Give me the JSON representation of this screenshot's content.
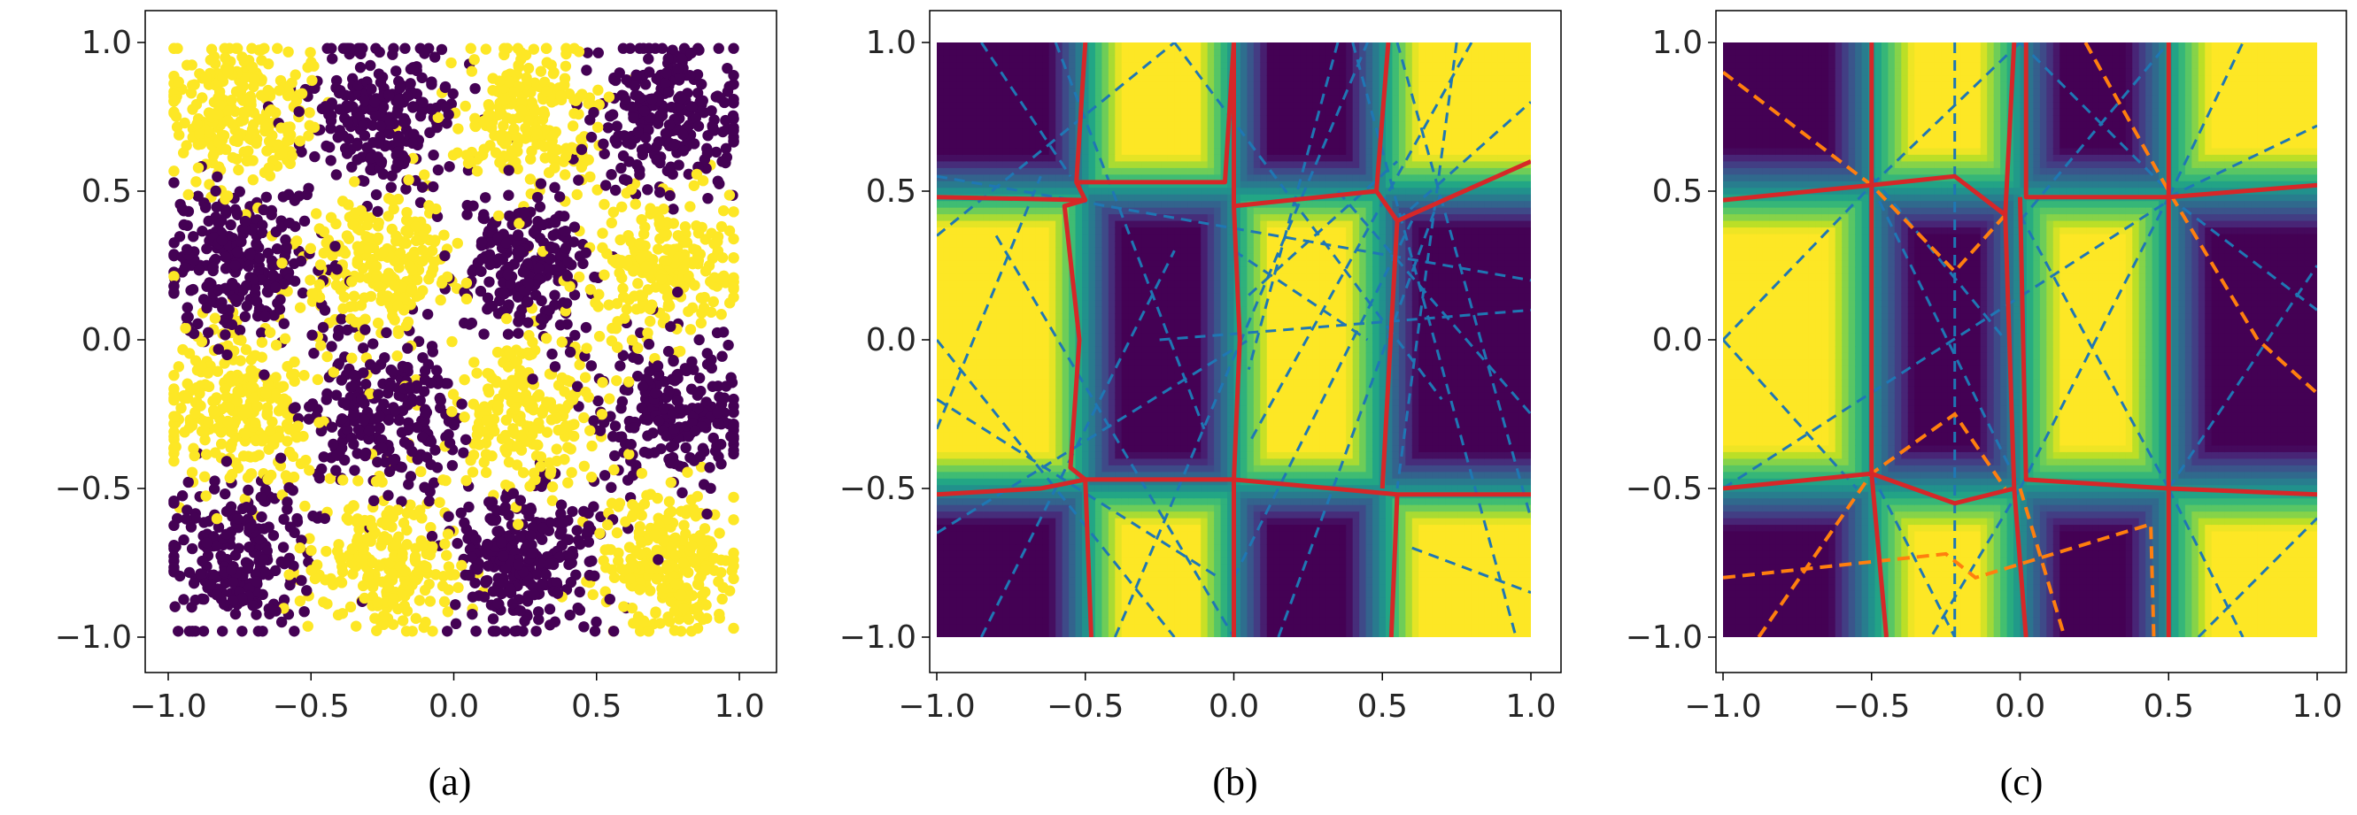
{
  "figure": {
    "captions": [
      "(a)",
      "(b)",
      "(c)"
    ]
  },
  "axes": {
    "xticks": [
      -1.0,
      -0.5,
      0.0,
      0.5,
      1.0
    ],
    "yticks": [
      1.0,
      0.5,
      0.0,
      -0.5,
      -1.0
    ],
    "xtick_labels": [
      "−1.0",
      "−0.5",
      "0.0",
      "0.5",
      "1.0"
    ],
    "ytick_labels": [
      "1.0",
      "0.5",
      "0.0",
      "−0.5",
      "−1.0"
    ]
  },
  "colors": {
    "class_0": "#440154",
    "class_1": "#fde725",
    "boundary": "#d62728",
    "blue_dashed": "#1f77b4",
    "orange_dashed": "#ff7f0e"
  },
  "chart_data": [
    {
      "panel": "(a)",
      "type": "scatter",
      "xlim": [
        -1.0,
        1.0
      ],
      "ylim": [
        -1.0,
        1.0
      ],
      "description_of_data": "4x4 checkerboard of two classes on [-1,1]^2",
      "checkerboard_cells": [
        -1.0,
        -0.5,
        0.0,
        0.5,
        1.0
      ],
      "classes": [
        "purple",
        "yellow"
      ],
      "n_points_approx": 4000
    },
    {
      "panel": "(b)",
      "type": "heatmap",
      "xlim": [
        -1.0,
        1.0
      ],
      "ylim": [
        -1.0,
        1.0
      ],
      "x_boundaries_ideal": [
        -0.5,
        0.0,
        0.5
      ],
      "y_boundaries_ideal": [
        -0.5,
        0.5
      ],
      "red_boundaries": [
        [
          [
            -0.5,
            1.0
          ],
          [
            -0.53,
            0.53
          ],
          [
            -0.5,
            0.47
          ],
          [
            -1.0,
            0.48
          ]
        ],
        [
          [
            -0.5,
            0.47
          ],
          [
            -0.57,
            0.45
          ],
          [
            -0.52,
            0.0
          ],
          [
            -0.55,
            -0.43
          ],
          [
            -0.5,
            -0.47
          ],
          [
            -0.65,
            -0.5
          ],
          [
            -1.0,
            -0.52
          ]
        ],
        [
          [
            -0.53,
            0.53
          ],
          [
            -0.03,
            0.53
          ],
          [
            0.0,
            1.0
          ]
        ],
        [
          [
            -0.5,
            -0.47
          ],
          [
            -0.48,
            -1.0
          ]
        ],
        [
          [
            -0.5,
            -0.47
          ],
          [
            0.0,
            -0.47
          ],
          [
            0.0,
            -1.0
          ]
        ],
        [
          [
            0.0,
            1.0
          ],
          [
            0.0,
            0.45
          ],
          [
            0.02,
            0.0
          ],
          [
            0.0,
            -0.47
          ]
        ],
        [
          [
            0.0,
            0.45
          ],
          [
            0.48,
            0.5
          ],
          [
            0.52,
            1.0
          ]
        ],
        [
          [
            0.48,
            0.5
          ],
          [
            0.55,
            0.4
          ],
          [
            0.5,
            -0.5
          ]
        ],
        [
          [
            0.0,
            -0.47
          ],
          [
            0.55,
            -0.52
          ],
          [
            1.0,
            -0.52
          ]
        ],
        [
          [
            0.55,
            -0.52
          ],
          [
            0.53,
            -1.0
          ]
        ],
        [
          [
            0.55,
            0.4
          ],
          [
            1.0,
            0.6
          ]
        ]
      ],
      "blue_dashed_lines": [
        [
          [
            -1.0,
            0.55
          ],
          [
            1.0,
            0.2
          ]
        ],
        [
          [
            -1.0,
            0.35
          ],
          [
            -0.2,
            1.0
          ]
        ],
        [
          [
            -1.0,
            -0.3
          ],
          [
            -0.65,
            0.55
          ]
        ],
        [
          [
            -1.0,
            0.0
          ],
          [
            -0.2,
            -1.0
          ]
        ],
        [
          [
            -1.0,
            -0.2
          ],
          [
            -0.05,
            -0.8
          ]
        ],
        [
          [
            -1.0,
            -0.65
          ],
          [
            0.05,
            0.0
          ]
        ],
        [
          [
            -0.85,
            -1.0
          ],
          [
            -0.2,
            0.3
          ]
        ],
        [
          [
            -0.85,
            1.0
          ],
          [
            -0.55,
            0.55
          ]
        ],
        [
          [
            -0.8,
            0.35
          ],
          [
            0.0,
            -1.0
          ]
        ],
        [
          [
            -0.6,
            1.0
          ],
          [
            -0.1,
            -0.3
          ]
        ],
        [
          [
            -0.4,
            -1.0
          ],
          [
            0.45,
            1.0
          ]
        ],
        [
          [
            -0.25,
            0.0
          ],
          [
            1.0,
            0.1
          ]
        ],
        [
          [
            -0.2,
            1.0
          ],
          [
            0.7,
            -0.2
          ]
        ],
        [
          [
            0.0,
            0.3
          ],
          [
            0.45,
            0.0
          ]
        ],
        [
          [
            0.0,
            -0.8
          ],
          [
            0.6,
            0.4
          ]
        ],
        [
          [
            0.05,
            0.15
          ],
          [
            0.55,
            0.6
          ]
        ],
        [
          [
            0.15,
            -1.0
          ],
          [
            0.7,
            0.5
          ]
        ],
        [
          [
            0.35,
            1.0
          ],
          [
            0.05,
            -0.1
          ]
        ],
        [
          [
            0.35,
            0.5
          ],
          [
            1.0,
            -0.25
          ]
        ],
        [
          [
            0.4,
            1.0
          ],
          [
            0.95,
            -1.0
          ]
        ],
        [
          [
            0.55,
            1.0
          ],
          [
            1.0,
            -0.6
          ]
        ],
        [
          [
            0.55,
            0.4
          ],
          [
            1.0,
            0.8
          ]
        ],
        [
          [
            0.6,
            -0.7
          ],
          [
            1.0,
            -0.85
          ]
        ],
        [
          [
            0.75,
            1.0
          ],
          [
            0.55,
            -0.5
          ]
        ],
        [
          [
            0.8,
            1.0
          ],
          [
            0.05,
            -0.35
          ]
        ]
      ]
    },
    {
      "panel": "(c)",
      "type": "heatmap",
      "xlim": [
        -1.0,
        1.0
      ],
      "ylim": [
        -1.0,
        1.0
      ],
      "x_boundaries_ideal": [
        -0.5,
        0.0,
        0.5
      ],
      "y_boundaries_ideal": [
        -0.5,
        0.5
      ],
      "red_boundaries": [
        [
          [
            -0.5,
            1.0
          ],
          [
            -0.5,
            0.52
          ],
          [
            -1.0,
            0.47
          ]
        ],
        [
          [
            -0.5,
            0.52
          ],
          [
            -0.22,
            0.55
          ],
          [
            -0.05,
            0.42
          ],
          [
            -0.02,
            1.0
          ]
        ],
        [
          [
            -0.5,
            0.52
          ],
          [
            -0.5,
            -0.45
          ]
        ],
        [
          [
            -0.05,
            0.42
          ],
          [
            -0.02,
            -0.5
          ]
        ],
        [
          [
            0.02,
            1.0
          ],
          [
            0.02,
            0.48
          ],
          [
            0.5,
            0.48
          ],
          [
            0.5,
            1.0
          ]
        ],
        [
          [
            0.5,
            0.48
          ],
          [
            1.0,
            0.52
          ]
        ],
        [
          [
            0.0,
            0.48
          ],
          [
            0.02,
            -0.47
          ],
          [
            0.5,
            -0.5
          ],
          [
            1.0,
            -0.52
          ]
        ],
        [
          [
            0.5,
            0.48
          ],
          [
            0.5,
            -0.5
          ]
        ],
        [
          [
            -1.0,
            -0.5
          ],
          [
            -0.5,
            -0.45
          ],
          [
            -0.22,
            -0.55
          ],
          [
            -0.02,
            -0.5
          ]
        ],
        [
          [
            -0.5,
            -0.45
          ],
          [
            -0.45,
            -1.0
          ]
        ],
        [
          [
            -0.02,
            -0.5
          ],
          [
            0.02,
            -1.0
          ]
        ],
        [
          [
            0.5,
            -0.5
          ],
          [
            0.5,
            -1.0
          ]
        ]
      ],
      "blue_dashed_lines": [
        [
          [
            -0.22,
            1.0
          ],
          [
            -0.22,
            -1.0
          ]
        ],
        [
          [
            -1.0,
            0.0
          ],
          [
            -0.55,
            -0.5
          ]
        ],
        [
          [
            -1.0,
            -0.0
          ],
          [
            -0.5,
            0.52
          ]
        ],
        [
          [
            -1.0,
            -0.5
          ],
          [
            0.55,
            0.5
          ]
        ],
        [
          [
            -0.5,
            0.52
          ],
          [
            0.0,
            1.0
          ]
        ],
        [
          [
            -0.5,
            0.52
          ],
          [
            0.0,
            -0.5
          ]
        ],
        [
          [
            -0.5,
            0.55
          ],
          [
            -0.05,
            0.0
          ]
        ],
        [
          [
            0.0,
            1.0
          ],
          [
            0.5,
            0.5
          ]
        ],
        [
          [
            0.0,
            0.4
          ],
          [
            0.5,
            1.0
          ]
        ],
        [
          [
            0.0,
            0.42
          ],
          [
            0.5,
            -0.5
          ]
        ],
        [
          [
            0.0,
            -0.5
          ],
          [
            0.5,
            0.48
          ]
        ],
        [
          [
            0.5,
            0.48
          ],
          [
            0.75,
            1.0
          ]
        ],
        [
          [
            0.5,
            0.48
          ],
          [
            1.0,
            0.1
          ]
        ],
        [
          [
            0.5,
            -0.5
          ],
          [
            1.0,
            0.25
          ]
        ],
        [
          [
            0.5,
            -0.5
          ],
          [
            0.75,
            -1.0
          ]
        ],
        [
          [
            0.6,
            -1.0
          ],
          [
            1.0,
            -0.6
          ]
        ],
        [
          [
            -0.5,
            -0.45
          ],
          [
            -0.22,
            -1.0
          ]
        ],
        [
          [
            0.0,
            -0.5
          ],
          [
            -0.3,
            -1.0
          ]
        ],
        [
          [
            0.5,
            0.48
          ],
          [
            1.0,
            0.72
          ]
        ]
      ],
      "orange_dashed_lines": [
        [
          [
            -1.0,
            0.9
          ],
          [
            -0.5,
            0.52
          ],
          [
            -0.22,
            0.23
          ],
          [
            -0.05,
            0.42
          ]
        ],
        [
          [
            0.22,
            1.0
          ],
          [
            0.5,
            0.5
          ],
          [
            0.8,
            0.0
          ],
          [
            1.0,
            -0.18
          ]
        ],
        [
          [
            -0.88,
            -1.0
          ],
          [
            -0.5,
            -0.45
          ],
          [
            -0.22,
            -0.25
          ],
          [
            -0.05,
            -0.5
          ]
        ],
        [
          [
            -1.0,
            -0.8
          ],
          [
            -0.25,
            -0.72
          ],
          [
            -0.15,
            -0.8
          ],
          [
            0.44,
            -0.62
          ],
          [
            0.45,
            -1.0
          ]
        ],
        [
          [
            0.0,
            -0.5
          ],
          [
            0.15,
            -1.0
          ]
        ]
      ]
    }
  ]
}
